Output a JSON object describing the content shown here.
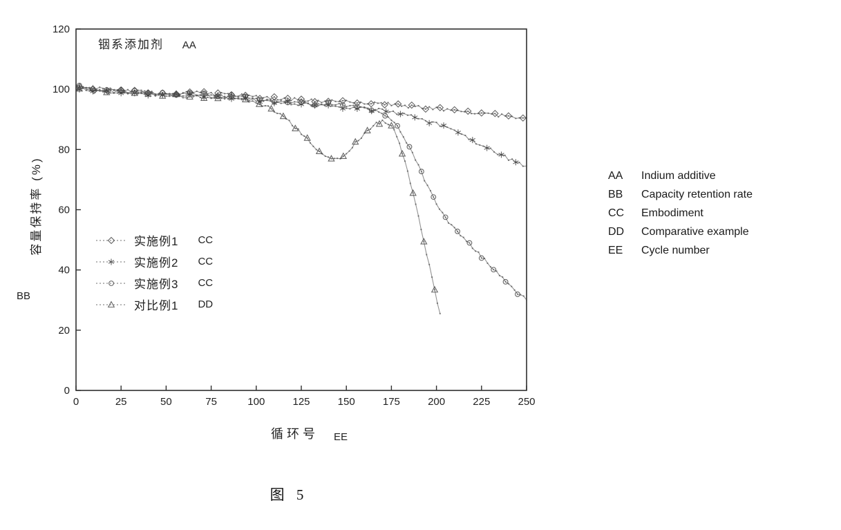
{
  "figure": {
    "caption": "图 5",
    "annotation": {
      "text": "铟系添加剂",
      "code": "AA"
    }
  },
  "key_panel": {
    "items": [
      {
        "code": "AA",
        "text": "Indium additive"
      },
      {
        "code": "BB",
        "text": "Capacity retention rate"
      },
      {
        "code": "CC",
        "text": "Embodiment"
      },
      {
        "code": "DD",
        "text": "Comparative example"
      },
      {
        "code": "EE",
        "text": "Cycle number"
      }
    ]
  },
  "chart_data": {
    "type": "line",
    "title": "铟系添加剂 (AA)",
    "xlabel": "循环号",
    "xlabel_code": "EE",
    "ylabel": "容量保持率 (%)",
    "ylabel_code": "BB",
    "xlim": [
      0,
      250
    ],
    "ylim": [
      0,
      120
    ],
    "xticks": [
      0,
      25,
      50,
      75,
      100,
      125,
      150,
      175,
      200,
      225,
      250
    ],
    "yticks": [
      0,
      20,
      40,
      60,
      80,
      100,
      120
    ],
    "grid": false,
    "legend_position": "inside-left-middle",
    "series": [
      {
        "name": "实施例1",
        "suffix": "CC",
        "marker": "diamond",
        "x": [
          0,
          10,
          25,
          40,
          50,
          65,
          75,
          90,
          100,
          110,
          125,
          140,
          150,
          160,
          175,
          190,
          200,
          210,
          225,
          240,
          250
        ],
        "y": [
          101,
          100,
          99.5,
          99,
          98.5,
          99,
          98.5,
          98,
          97.5,
          97,
          96.5,
          96,
          96,
          95.5,
          95,
          94,
          93.5,
          93,
          92,
          91,
          90.5
        ]
      },
      {
        "name": "实施例2",
        "suffix": "CC",
        "marker": "star",
        "x": [
          0,
          15,
          25,
          40,
          50,
          65,
          75,
          90,
          100,
          110,
          125,
          140,
          150,
          160,
          170,
          180,
          190,
          200,
          210,
          220,
          230,
          240,
          250
        ],
        "y": [
          100.5,
          99.5,
          99,
          98.5,
          98,
          98,
          97.5,
          97,
          96.5,
          95.5,
          95,
          94.5,
          94,
          93.5,
          93,
          92,
          90.5,
          88.5,
          86,
          83,
          80,
          77,
          74.5
        ]
      },
      {
        "name": "实施例3",
        "suffix": "CC",
        "marker": "circle",
        "x": [
          0,
          15,
          25,
          40,
          50,
          65,
          75,
          90,
          100,
          110,
          125,
          140,
          150,
          160,
          168,
          175,
          180,
          185,
          190,
          195,
          200,
          205,
          210,
          215,
          220,
          225,
          230,
          235,
          240,
          245,
          250
        ],
        "y": [
          101,
          100,
          99.5,
          99,
          98.5,
          98.5,
          98,
          97.5,
          96.5,
          96,
          95.5,
          95,
          94.5,
          94,
          92.5,
          90,
          86,
          80.5,
          74.5,
          68,
          62,
          57,
          53.5,
          50.5,
          47.5,
          44.5,
          41.5,
          38.5,
          35.5,
          32.5,
          30
        ]
      },
      {
        "name": "对比例1",
        "suffix": "DD",
        "marker": "triangle",
        "x": [
          0,
          15,
          25,
          40,
          50,
          65,
          75,
          90,
          100,
          105,
          110,
          115,
          120,
          125,
          130,
          135,
          140,
          145,
          150,
          155,
          160,
          165,
          170,
          175,
          178,
          181,
          184,
          187,
          190,
          193,
          196,
          199,
          202
        ],
        "y": [
          100.5,
          99.5,
          99,
          98.5,
          98,
          97.5,
          97.5,
          97,
          95.5,
          94.5,
          93,
          91,
          88.5,
          85.5,
          82.5,
          79.5,
          77.5,
          77,
          78.5,
          82,
          85.5,
          88,
          89.5,
          88,
          84,
          79,
          72.5,
          65,
          57.5,
          49.5,
          41.5,
          33,
          25.5
        ]
      }
    ]
  }
}
